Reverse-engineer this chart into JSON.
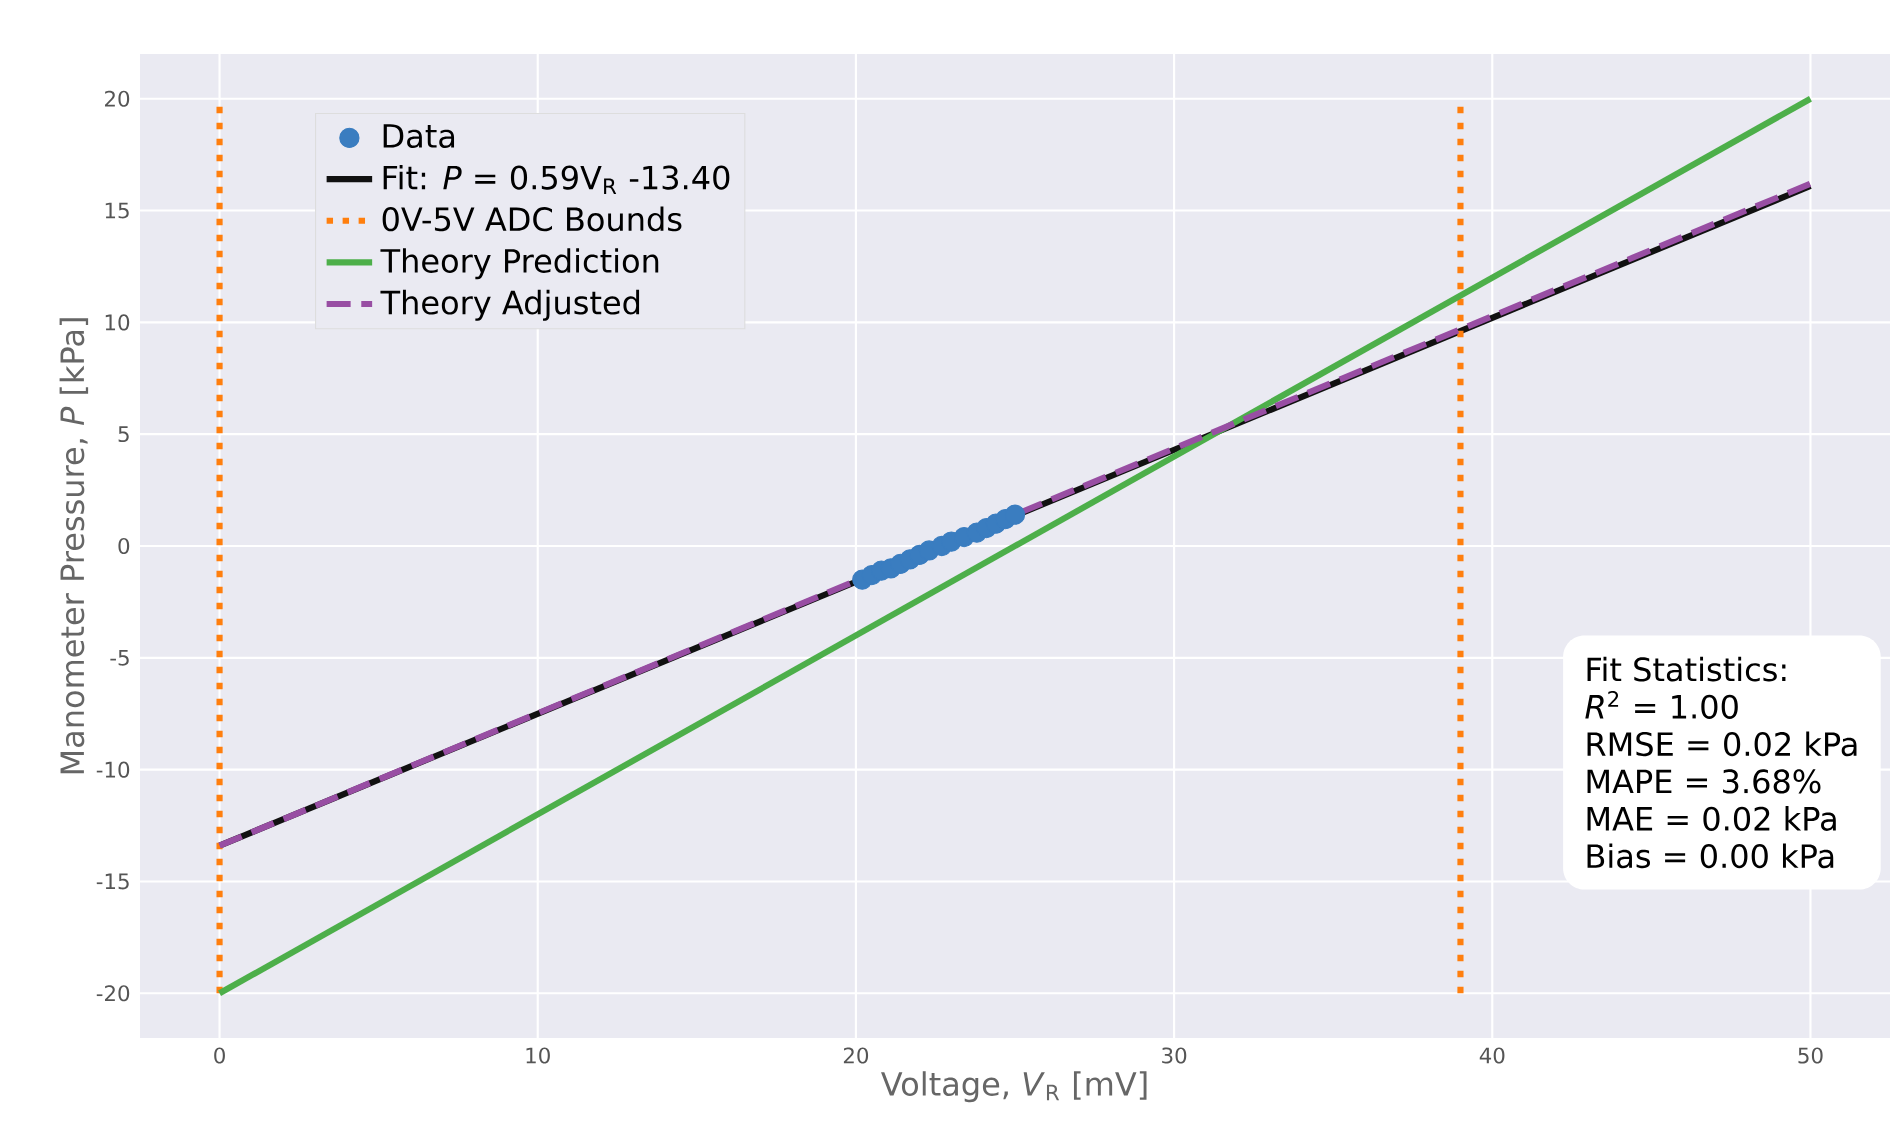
{
  "chart_data": {
    "type": "line",
    "xlabel": "Voltage, *V*$_{R}$ [mV]",
    "ylabel": "Manometer Pressure, *P* [kPa]",
    "xlim": [
      -2.5,
      52.5
    ],
    "ylim": [
      -22,
      22
    ],
    "xticks": [
      0,
      10,
      20,
      30,
      40,
      50
    ],
    "yticks": [
      -20,
      -15,
      -10,
      -5,
      0,
      5,
      10,
      15,
      20
    ],
    "grid": true,
    "legend": "top left",
    "series": [
      {
        "name": "Data",
        "type": "scatter",
        "marker": "circle",
        "color": "#3a7dc0",
        "x": [
          20.2,
          20.5,
          20.8,
          21.1,
          21.4,
          21.7,
          22.0,
          22.3,
          22.7,
          23.0,
          23.4,
          23.8,
          24.1,
          24.4,
          24.7,
          25.0
        ],
        "values": [
          -1.5,
          -1.3,
          -1.1,
          -1.0,
          -0.8,
          -0.6,
          -0.4,
          -0.2,
          0.0,
          0.2,
          0.4,
          0.6,
          0.8,
          1.0,
          1.2,
          1.4
        ]
      },
      {
        "name": "Fit: *P* = 0.59V$_{R}$ -13.40",
        "line_style": "solid",
        "color": "#111111",
        "x": [
          0,
          50
        ],
        "values": [
          -13.4,
          16.1
        ]
      },
      {
        "name": "0V-5V ADC Bounds",
        "line_style": "dotted",
        "color": "#ff7f0e",
        "x": [
          0,
          0,
          19.5,
          39,
          39
        ],
        "values": [
          -20,
          20,
          null,
          -20,
          20
        ]
      },
      {
        "name": "Theory Prediction",
        "line_style": "solid",
        "color": "#4daf4a",
        "x": [
          0,
          50
        ],
        "values": [
          -20,
          20
        ]
      },
      {
        "name": "Theory Adjusted",
        "line_style": "dashed",
        "color": "#984ea3",
        "x": [
          0,
          50
        ],
        "values": [
          -13.4,
          16.2
        ]
      }
    ],
    "annotations": [
      "Fit Statistics:",
      "*R*$^{2}$ = 1.00",
      "RMSE = 0.02 kPa",
      "MAPE = 3.68%",
      "MAE = 0.02 kPa",
      "Bias = 0.00 kPa"
    ]
  }
}
